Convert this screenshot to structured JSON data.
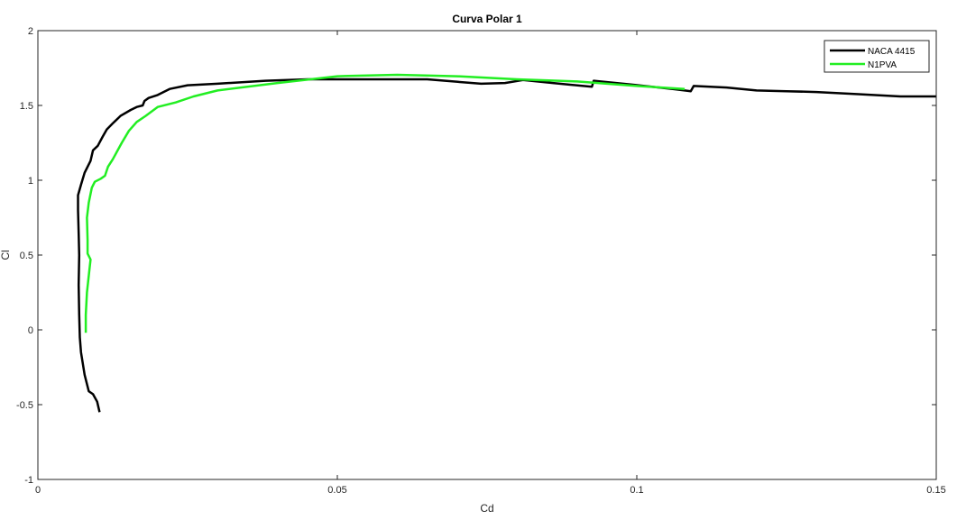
{
  "chart_data": {
    "type": "line",
    "title": "Curva Polar 1",
    "xlabel": "Cd",
    "ylabel": "Cl",
    "xlim": [
      0,
      0.15
    ],
    "ylim": [
      -1,
      2
    ],
    "x_ticks": [
      0,
      0.05,
      0.1,
      0.15
    ],
    "x_tick_labels": [
      "0",
      "0.05",
      "0.1",
      "0.15"
    ],
    "y_ticks": [
      -1,
      -0.5,
      0,
      0.5,
      1,
      1.5,
      2
    ],
    "y_tick_labels": [
      "-1",
      "-0.5",
      "0",
      "0.5",
      "1",
      "1.5",
      "2"
    ],
    "grid": false,
    "legend_position": "top-right",
    "series": [
      {
        "name": "NACA 4415",
        "color": "#000000",
        "points": [
          [
            0.0103,
            -0.55
          ],
          [
            0.0099,
            -0.48
          ],
          [
            0.0092,
            -0.43
          ],
          [
            0.0085,
            -0.41
          ],
          [
            0.0078,
            -0.3
          ],
          [
            0.0072,
            -0.15
          ],
          [
            0.007,
            -0.05
          ],
          [
            0.0069,
            0.1
          ],
          [
            0.0068,
            0.3
          ],
          [
            0.0069,
            0.5
          ],
          [
            0.0068,
            0.65
          ],
          [
            0.0067,
            0.8
          ],
          [
            0.0067,
            0.9
          ],
          [
            0.0072,
            0.97
          ],
          [
            0.0078,
            1.05
          ],
          [
            0.0088,
            1.13
          ],
          [
            0.0092,
            1.2
          ],
          [
            0.01,
            1.23
          ],
          [
            0.0108,
            1.29
          ],
          [
            0.0115,
            1.34
          ],
          [
            0.0125,
            1.38
          ],
          [
            0.0138,
            1.43
          ],
          [
            0.0155,
            1.47
          ],
          [
            0.0165,
            1.49
          ],
          [
            0.0175,
            1.5
          ],
          [
            0.0178,
            1.53
          ],
          [
            0.0185,
            1.55
          ],
          [
            0.02,
            1.57
          ],
          [
            0.022,
            1.61
          ],
          [
            0.025,
            1.635
          ],
          [
            0.03,
            1.645
          ],
          [
            0.038,
            1.665
          ],
          [
            0.045,
            1.675
          ],
          [
            0.055,
            1.675
          ],
          [
            0.065,
            1.675
          ],
          [
            0.074,
            1.645
          ],
          [
            0.078,
            1.65
          ],
          [
            0.081,
            1.67
          ],
          [
            0.086,
            1.65
          ],
          [
            0.0925,
            1.625
          ],
          [
            0.0928,
            1.665
          ],
          [
            0.099,
            1.64
          ],
          [
            0.106,
            1.61
          ],
          [
            0.109,
            1.595
          ],
          [
            0.1095,
            1.63
          ],
          [
            0.115,
            1.62
          ],
          [
            0.12,
            1.6
          ],
          [
            0.125,
            1.595
          ],
          [
            0.13,
            1.59
          ],
          [
            0.137,
            1.575
          ],
          [
            0.144,
            1.56
          ],
          [
            0.15,
            1.56
          ]
        ]
      },
      {
        "name": "N1PVA",
        "color": "#22ee22",
        "points": [
          [
            0.008,
            -0.02
          ],
          [
            0.008,
            0.1
          ],
          [
            0.0082,
            0.25
          ],
          [
            0.0086,
            0.4
          ],
          [
            0.0088,
            0.47
          ],
          [
            0.0083,
            0.51
          ],
          [
            0.0083,
            0.6
          ],
          [
            0.0082,
            0.75
          ],
          [
            0.0085,
            0.85
          ],
          [
            0.009,
            0.95
          ],
          [
            0.0095,
            0.99
          ],
          [
            0.0105,
            1.01
          ],
          [
            0.0112,
            1.03
          ],
          [
            0.0117,
            1.09
          ],
          [
            0.0125,
            1.14
          ],
          [
            0.014,
            1.25
          ],
          [
            0.0152,
            1.33
          ],
          [
            0.0165,
            1.39
          ],
          [
            0.018,
            1.43
          ],
          [
            0.02,
            1.49
          ],
          [
            0.023,
            1.52
          ],
          [
            0.026,
            1.56
          ],
          [
            0.03,
            1.6
          ],
          [
            0.04,
            1.65
          ],
          [
            0.05,
            1.695
          ],
          [
            0.06,
            1.705
          ],
          [
            0.07,
            1.695
          ],
          [
            0.08,
            1.675
          ],
          [
            0.09,
            1.66
          ],
          [
            0.1,
            1.63
          ],
          [
            0.108,
            1.61
          ]
        ]
      }
    ]
  }
}
